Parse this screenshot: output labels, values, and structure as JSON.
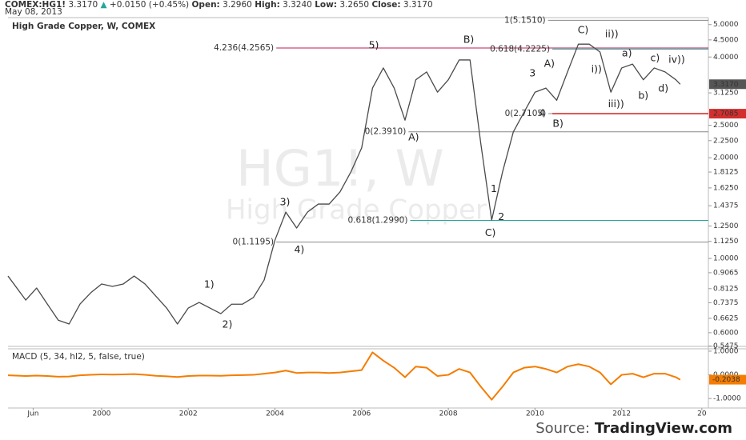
{
  "chart_data": {
    "type": "line",
    "header": {
      "symbol": "COMEX:HG1!",
      "last": "3.3170",
      "change": "+0.0150 (+0.45%)",
      "fields": [
        {
          "label": "Open:",
          "value": "3.2960"
        },
        {
          "label": "High:",
          "value": "3.3240"
        },
        {
          "label": "Low:",
          "value": "3.2650"
        },
        {
          "label": "Close:",
          "value": "3.3170"
        }
      ],
      "date": "May 08, 2013"
    },
    "watermark": {
      "symbol": "HG1!, W",
      "name": "High Grade Copper"
    },
    "log_scale": true,
    "xlim": [
      1997.84,
      2014.0
    ],
    "xticks": [
      {
        "value": 1998.42,
        "label": "Jun"
      },
      2000,
      2002,
      2004,
      2006,
      2008,
      2010,
      2012,
      {
        "value": 2013.85,
        "label": "20"
      }
    ],
    "ylim": [
      0.546,
      5.246
    ],
    "yticks": [
      {
        "value": 5.0,
        "label": "5.0000"
      },
      {
        "value": 4.5,
        "label": "4.5000"
      },
      {
        "value": 4.0,
        "label": "4.0000"
      },
      {
        "value": 3.125,
        "label": "3.1250"
      },
      {
        "value": 2.5,
        "label": "2.5000"
      },
      {
        "value": 2.25,
        "label": "2.2500"
      },
      {
        "value": 2.0,
        "label": "2.0000"
      },
      {
        "value": 1.8125,
        "label": "1.8125"
      },
      {
        "value": 1.625,
        "label": "1.6250"
      },
      {
        "value": 1.4375,
        "label": "1.4375"
      },
      {
        "value": 1.25,
        "label": "1.2500"
      },
      {
        "value": 1.125,
        "label": "1.1250"
      },
      {
        "value": 1.0,
        "label": "1.0000"
      },
      {
        "value": 0.9065,
        "label": "0.9065"
      },
      {
        "value": 0.8125,
        "label": "0.8125"
      },
      {
        "value": 0.7375,
        "label": "0.7375"
      },
      {
        "value": 0.6625,
        "label": "0.6625"
      },
      {
        "value": 0.6,
        "label": "0.6000"
      },
      {
        "value": 0.5475,
        "label": "0.5475"
      }
    ],
    "x": [
      1997.84,
      1998.25,
      1998.5,
      1998.75,
      1999,
      1999.25,
      1999.5,
      1999.75,
      2000,
      2000.25,
      2000.5,
      2000.75,
      2001,
      2001.25,
      2001.5,
      2001.75,
      2002,
      2002.25,
      2002.5,
      2002.75,
      2003,
      2003.25,
      2003.5,
      2003.75,
      2004,
      2004.25,
      2004.5,
      2004.75,
      2005,
      2005.25,
      2005.5,
      2005.75,
      2006,
      2006.25,
      2006.5,
      2006.75,
      2007,
      2007.25,
      2007.5,
      2007.75,
      2008,
      2008.25,
      2008.5,
      2008.75,
      2009,
      2009.25,
      2009.5,
      2009.75,
      2010,
      2010.25,
      2010.5,
      2010.75,
      2011,
      2011.25,
      2011.5,
      2011.75,
      2012,
      2012.25,
      2012.5,
      2012.75,
      2013,
      2013.25,
      2013.35
    ],
    "series": [
      {
        "name": "High Grade Copper, W, COMEX",
        "color": "#4a4a4a",
        "values": [
          0.886,
          0.751,
          0.816,
          0.73,
          0.654,
          0.637,
          0.73,
          0.79,
          0.839,
          0.825,
          0.839,
          0.886,
          0.839,
          0.772,
          0.711,
          0.637,
          0.711,
          0.739,
          0.711,
          0.684,
          0.73,
          0.73,
          0.764,
          0.862,
          1.135,
          1.376,
          1.233,
          1.376,
          1.454,
          1.454,
          1.58,
          1.812,
          2.14,
          3.23,
          3.71,
          3.23,
          2.59,
          3.42,
          3.61,
          3.14,
          3.42,
          3.92,
          3.92,
          2.2,
          1.302,
          1.812,
          2.39,
          2.74,
          3.14,
          3.23,
          2.97,
          3.61,
          4.37,
          4.37,
          4.14,
          3.14,
          3.71,
          3.81,
          3.42,
          3.71,
          3.61,
          3.42,
          3.317
        ]
      }
    ],
    "levels": [
      {
        "label": "1(5.1510)",
        "value": 5.151,
        "from": 2010.3,
        "color": "#888888"
      },
      {
        "label": "4.236(4.2565)",
        "value": 4.2565,
        "from": 2004.03,
        "color": "#c2185b"
      },
      {
        "label": "0.618(4.2225)",
        "value": 4.2225,
        "from": 2010.4,
        "color": "#26a69a"
      },
      {
        "label": "0(2.7105)",
        "value": 2.7105,
        "from": 2010.31,
        "color": "#888888"
      },
      {
        "axis_label": "2.7085",
        "value": 2.7085,
        "from": 2010.4,
        "color": "#d32f2f"
      },
      {
        "label": "0(2.3910)",
        "value": 2.391,
        "from": 2007.08,
        "color": "#888888"
      },
      {
        "label": "0.618(1.2990)",
        "value": 1.299,
        "from": 2007.12,
        "color": "#26a69a"
      },
      {
        "label": "0(1.1195)",
        "value": 1.1195,
        "from": 2004.03,
        "color": "#888888"
      }
    ],
    "annotations": [
      {
        "text": "5)",
        "x": 2006.28,
        "y": 4.33
      },
      {
        "text": "B)",
        "x": 2008.47,
        "y": 4.5
      },
      {
        "text": "C)",
        "x": 2011.11,
        "y": 4.8
      },
      {
        "text": "ii))",
        "x": 2011.77,
        "y": 4.67
      },
      {
        "text": "a)",
        "x": 2012.12,
        "y": 4.1
      },
      {
        "text": "c)",
        "x": 2012.77,
        "y": 3.96
      },
      {
        "text": "iv))",
        "x": 2013.27,
        "y": 3.92
      },
      {
        "text": "A)",
        "x": 2010.33,
        "y": 3.81
      },
      {
        "text": "3",
        "x": 2009.94,
        "y": 3.57
      },
      {
        "text": "i))",
        "x": 2011.42,
        "y": 3.67
      },
      {
        "text": "b)",
        "x": 2012.5,
        "y": 3.06
      },
      {
        "text": "d)",
        "x": 2012.96,
        "y": 3.21
      },
      {
        "text": "iii))",
        "x": 2011.87,
        "y": 2.89
      },
      {
        "text": "4",
        "x": 2010.16,
        "y": 2.71
      },
      {
        "text": "B)",
        "x": 2010.53,
        "y": 2.52
      },
      {
        "text": "A)",
        "x": 2007.2,
        "y": 2.3
      },
      {
        "text": "1",
        "x": 2009.05,
        "y": 1.61
      },
      {
        "text": "2",
        "x": 2009.22,
        "y": 1.33
      },
      {
        "text": "C)",
        "x": 2008.97,
        "y": 1.19
      },
      {
        "text": "3)",
        "x": 2004.23,
        "y": 1.47
      },
      {
        "text": "4)",
        "x": 2004.56,
        "y": 1.06
      },
      {
        "text": "1)",
        "x": 2002.48,
        "y": 0.834
      },
      {
        "text": "2)",
        "x": 2002.9,
        "y": 0.633
      }
    ],
    "macd": {
      "title": "MACD (5, 34, hl2, 5, false, true)",
      "color": "#f57c00",
      "last_label": "-0.2038",
      "ylim": [
        -1.4,
        1.1
      ],
      "yticks": [
        {
          "value": 1,
          "label": "1.0000"
        },
        {
          "value": 0,
          "label": "0.0000"
        },
        {
          "value": -1,
          "label": "-1.0000"
        }
      ],
      "values": [
        -0.02,
        -0.05,
        -0.03,
        -0.05,
        -0.08,
        -0.07,
        -0.02,
        0.0,
        0.02,
        0.01,
        0.02,
        0.03,
        0.0,
        -0.04,
        -0.06,
        -0.09,
        -0.05,
        -0.03,
        -0.03,
        -0.04,
        -0.02,
        -0.01,
        0.0,
        0.05,
        0.1,
        0.18,
        0.08,
        0.1,
        0.1,
        0.08,
        0.1,
        0.15,
        0.2,
        0.95,
        0.6,
        0.3,
        -0.1,
        0.35,
        0.3,
        -0.05,
        0.0,
        0.25,
        0.1,
        -0.5,
        -1.05,
        -0.5,
        0.1,
        0.3,
        0.35,
        0.25,
        0.1,
        0.35,
        0.45,
        0.35,
        0.1,
        -0.4,
        0.0,
        0.05,
        -0.1,
        0.05,
        0.05,
        -0.1,
        -0.2038
      ]
    },
    "source": {
      "label": "Source:",
      "site": "TradingView.com"
    }
  }
}
